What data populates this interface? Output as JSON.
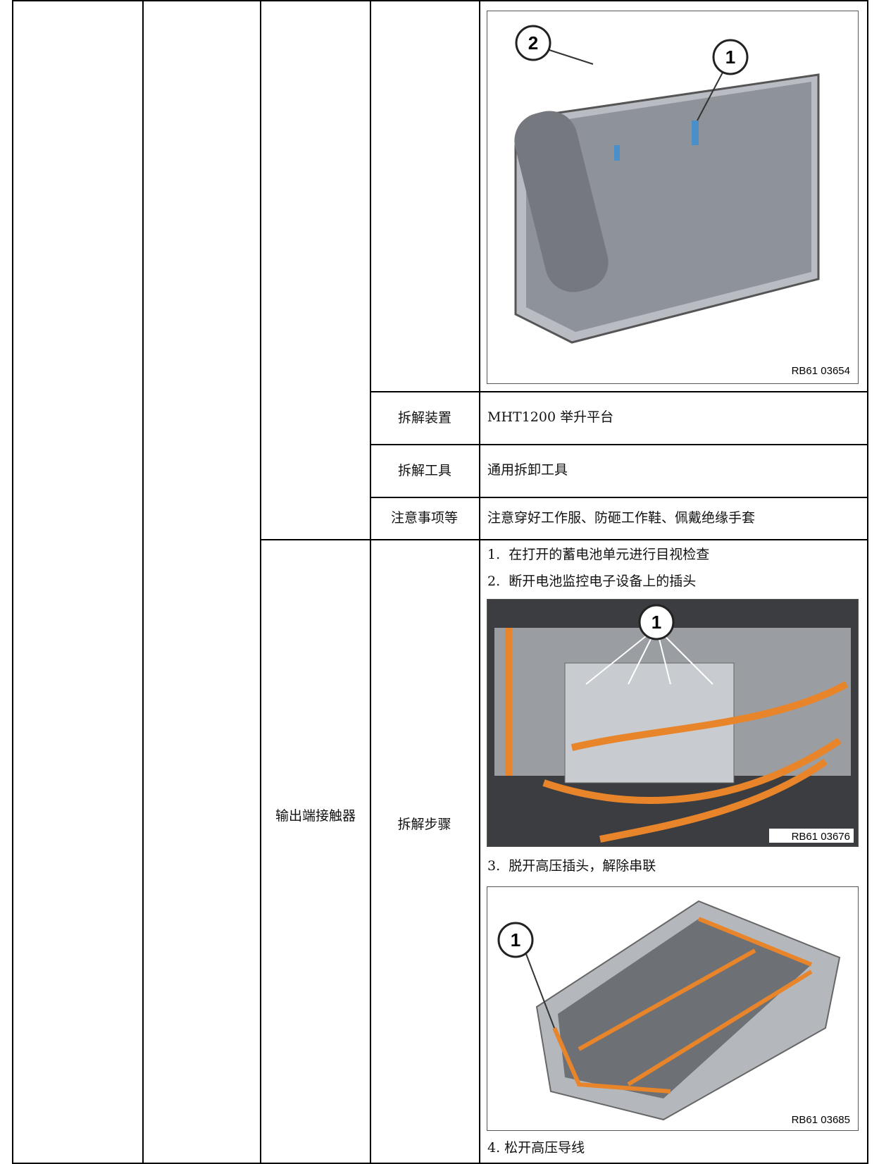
{
  "header_image": {
    "callouts": [
      "2",
      "1"
    ],
    "code": "RB61 03654"
  },
  "rows": [
    {
      "label": "拆解装置",
      "value": "MHT1200 举升平台"
    },
    {
      "label": "拆解工具",
      "value": "通用拆卸工具"
    },
    {
      "label": "注意事项等",
      "value": "注意穿好工作服、防砸工作鞋、佩戴绝缘手套"
    }
  ],
  "section": {
    "component": "输出端接触器",
    "label": "拆解步骤",
    "steps": [
      "1.  在打开的蓄电池单元进行目视检查",
      "2.  断开电池监控电子设备上的插头",
      "3.  脱开高压插头，解除串联",
      "4. 松开高压导线"
    ],
    "images": [
      {
        "callouts": [
          "1"
        ],
        "code": "RB61 03676"
      },
      {
        "callouts": [
          "1"
        ],
        "code": "RB61 03685"
      }
    ]
  }
}
